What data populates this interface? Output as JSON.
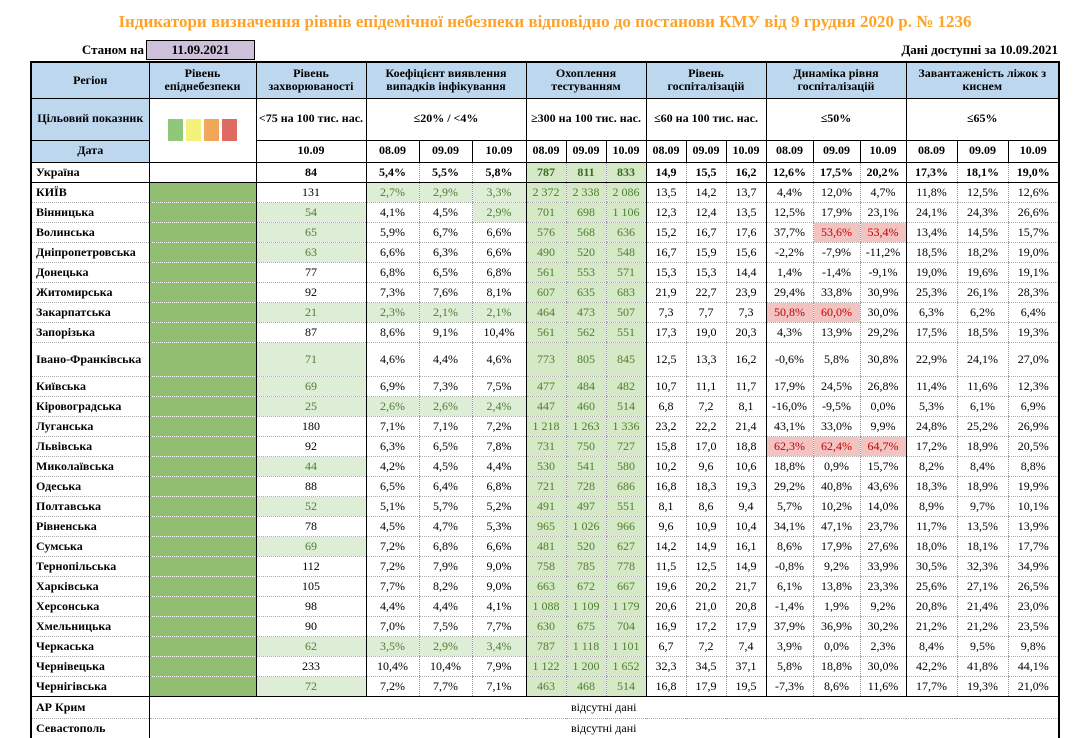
{
  "title": "Індикатори визначення рівнів епідемічної небезпеки відповідно до постанови КМУ від 9 грудня 2020 р. № 1236",
  "as_of": {
    "label": "Станом на",
    "date": "11.09.2021"
  },
  "available": "Дані доступні за  10.09.2021",
  "header": {
    "region": "Регіон",
    "target_row_label": "Цільовий показник",
    "date_row_label": "Дата",
    "groups": [
      {
        "label": "Рівень епіднебезпеки",
        "target": "",
        "dates": []
      },
      {
        "label": "Рівень захворюваності",
        "target": "<75 на 100 тис. нас.",
        "dates": [
          "10.09"
        ]
      },
      {
        "label": "Коефіцієнт виявлення випадків інфікування",
        "target": "≤20% / <4%",
        "dates": [
          "08.09",
          "09.09",
          "10.09"
        ]
      },
      {
        "label": "Охоплення тестуванням",
        "target": "≥300 на 100 тис. нас.",
        "dates": [
          "08.09",
          "09.09",
          "10.09"
        ]
      },
      {
        "label": "Рівень госпіталізацій",
        "target": "≤60 на 100 тис. нас.",
        "dates": [
          "08.09",
          "09.09",
          "10.09"
        ]
      },
      {
        "label": "Динаміка рівня госпіталізацій",
        "target": "≤50%",
        "dates": [
          "08.09",
          "09.09",
          "10.09"
        ]
      },
      {
        "label": "Завантаженість ліжок з киснем",
        "target": "≤65%",
        "dates": [
          "08.09",
          "09.09",
          "10.09"
        ]
      }
    ],
    "legend_colors": [
      "#8FC878",
      "#F5F27B",
      "#F2A65A",
      "#DF6A62"
    ]
  },
  "status_colors": {
    "epi_level_green": "#92BE72",
    "ok_bg": "#DEEDD6",
    "ok_text": "#4E7E32",
    "testing_bg": "#D6E9C6",
    "alert_bg": "#F3C3C2",
    "alert_text": "#C00000",
    "header_bg": "#BDD7EE",
    "date_box_bg": "#CCC0DA",
    "title_text": "#FFA228"
  },
  "rows": [
    {
      "region": "Україна",
      "bold": true,
      "epi": false,
      "inc": "84",
      "inc_g": false,
      "det": [
        "5,4%",
        "5,5%",
        "5,8%"
      ],
      "det_g": [
        false,
        false,
        false
      ],
      "test": [
        "787",
        "811",
        "833"
      ],
      "hosp": [
        "14,9",
        "15,5",
        "16,2"
      ],
      "dyn": [
        "12,6%",
        "17,5%",
        "20,2%"
      ],
      "dyn_r": [
        false,
        false,
        false
      ],
      "beds": [
        "17,3%",
        "18,1%",
        "19,0%"
      ]
    },
    {
      "region": "КИЇВ",
      "epi": true,
      "inc": "131",
      "inc_g": false,
      "det": [
        "2,7%",
        "2,9%",
        "3,3%"
      ],
      "det_g": [
        true,
        true,
        true
      ],
      "test": [
        "2 372",
        "2 338",
        "2 086"
      ],
      "hosp": [
        "13,5",
        "14,2",
        "13,7"
      ],
      "dyn": [
        "4,4%",
        "12,0%",
        "4,7%"
      ],
      "dyn_r": [
        false,
        false,
        false
      ],
      "beds": [
        "11,8%",
        "12,5%",
        "12,6%"
      ]
    },
    {
      "region": "Вінницька",
      "epi": true,
      "inc": "54",
      "inc_g": true,
      "det": [
        "4,1%",
        "4,5%",
        "2,9%"
      ],
      "det_g": [
        false,
        false,
        true
      ],
      "test": [
        "701",
        "698",
        "1 106"
      ],
      "hosp": [
        "12,3",
        "12,4",
        "13,5"
      ],
      "dyn": [
        "12,5%",
        "17,9%",
        "23,1%"
      ],
      "dyn_r": [
        false,
        false,
        false
      ],
      "beds": [
        "24,1%",
        "24,3%",
        "26,6%"
      ]
    },
    {
      "region": "Волинська",
      "epi": true,
      "inc": "65",
      "inc_g": true,
      "det": [
        "5,9%",
        "6,7%",
        "6,6%"
      ],
      "det_g": [
        false,
        false,
        false
      ],
      "test": [
        "576",
        "568",
        "636"
      ],
      "hosp": [
        "15,2",
        "16,7",
        "17,6"
      ],
      "dyn": [
        "37,7%",
        "53,6%",
        "53,4%"
      ],
      "dyn_r": [
        false,
        true,
        true
      ],
      "beds": [
        "13,4%",
        "14,5%",
        "15,7%"
      ]
    },
    {
      "region": "Дніпропетровська",
      "epi": true,
      "inc": "63",
      "inc_g": true,
      "det": [
        "6,6%",
        "6,3%",
        "6,6%"
      ],
      "det_g": [
        false,
        false,
        false
      ],
      "test": [
        "490",
        "520",
        "548"
      ],
      "hosp": [
        "16,7",
        "15,9",
        "15,6"
      ],
      "dyn": [
        "-2,2%",
        "-7,9%",
        "-11,2%"
      ],
      "dyn_r": [
        false,
        false,
        false
      ],
      "beds": [
        "18,5%",
        "18,2%",
        "19,0%"
      ]
    },
    {
      "region": "Донецька",
      "epi": true,
      "inc": "77",
      "inc_g": false,
      "det": [
        "6,8%",
        "6,5%",
        "6,8%"
      ],
      "det_g": [
        false,
        false,
        false
      ],
      "test": [
        "561",
        "553",
        "571"
      ],
      "hosp": [
        "15,3",
        "15,3",
        "14,4"
      ],
      "dyn": [
        "1,4%",
        "-1,4%",
        "-9,1%"
      ],
      "dyn_r": [
        false,
        false,
        false
      ],
      "beds": [
        "19,0%",
        "19,6%",
        "19,1%"
      ]
    },
    {
      "region": "Житомирська",
      "epi": true,
      "inc": "92",
      "inc_g": false,
      "det": [
        "7,3%",
        "7,6%",
        "8,1%"
      ],
      "det_g": [
        false,
        false,
        false
      ],
      "test": [
        "607",
        "635",
        "683"
      ],
      "hosp": [
        "21,9",
        "22,7",
        "23,9"
      ],
      "dyn": [
        "29,4%",
        "33,8%",
        "30,9%"
      ],
      "dyn_r": [
        false,
        false,
        false
      ],
      "beds": [
        "25,3%",
        "26,1%",
        "28,3%"
      ]
    },
    {
      "region": "Закарпатська",
      "epi": true,
      "inc": "21",
      "inc_g": true,
      "det": [
        "2,3%",
        "2,1%",
        "2,1%"
      ],
      "det_g": [
        true,
        true,
        true
      ],
      "test": [
        "464",
        "473",
        "507"
      ],
      "hosp": [
        "7,3",
        "7,7",
        "7,3"
      ],
      "dyn": [
        "50,8%",
        "60,0%",
        "30,0%"
      ],
      "dyn_r": [
        true,
        true,
        false
      ],
      "beds": [
        "6,3%",
        "6,2%",
        "6,4%"
      ]
    },
    {
      "region": "Запорізька",
      "epi": true,
      "inc": "87",
      "inc_g": false,
      "det": [
        "8,6%",
        "9,1%",
        "10,4%"
      ],
      "det_g": [
        false,
        false,
        false
      ],
      "test": [
        "561",
        "562",
        "551"
      ],
      "hosp": [
        "17,3",
        "19,0",
        "20,3"
      ],
      "dyn": [
        "4,3%",
        "13,9%",
        "29,2%"
      ],
      "dyn_r": [
        false,
        false,
        false
      ],
      "beds": [
        "17,5%",
        "18,5%",
        "19,3%"
      ]
    },
    {
      "region": "Івано-Франківська",
      "tall": true,
      "epi": true,
      "inc": "71",
      "inc_g": true,
      "det": [
        "4,6%",
        "4,4%",
        "4,6%"
      ],
      "det_g": [
        false,
        false,
        false
      ],
      "test": [
        "773",
        "805",
        "845"
      ],
      "hosp": [
        "12,5",
        "13,3",
        "16,2"
      ],
      "dyn": [
        "-0,6%",
        "5,8%",
        "30,8%"
      ],
      "dyn_r": [
        false,
        false,
        false
      ],
      "beds": [
        "22,9%",
        "24,1%",
        "27,0%"
      ]
    },
    {
      "region": "Київська",
      "epi": true,
      "inc": "69",
      "inc_g": true,
      "det": [
        "6,9%",
        "7,3%",
        "7,5%"
      ],
      "det_g": [
        false,
        false,
        false
      ],
      "test": [
        "477",
        "484",
        "482"
      ],
      "hosp": [
        "10,7",
        "11,1",
        "11,7"
      ],
      "dyn": [
        "17,9%",
        "24,5%",
        "26,8%"
      ],
      "dyn_r": [
        false,
        false,
        false
      ],
      "beds": [
        "11,4%",
        "11,6%",
        "12,3%"
      ]
    },
    {
      "region": "Кіровоградська",
      "epi": true,
      "inc": "25",
      "inc_g": true,
      "det": [
        "2,6%",
        "2,6%",
        "2,4%"
      ],
      "det_g": [
        true,
        true,
        true
      ],
      "test": [
        "447",
        "460",
        "514"
      ],
      "hosp": [
        "6,8",
        "7,2",
        "8,1"
      ],
      "dyn": [
        "-16,0%",
        "-9,5%",
        "0,0%"
      ],
      "dyn_r": [
        false,
        false,
        false
      ],
      "beds": [
        "5,3%",
        "6,1%",
        "6,9%"
      ]
    },
    {
      "region": "Луганська",
      "epi": true,
      "inc": "180",
      "inc_g": false,
      "det": [
        "7,1%",
        "7,1%",
        "7,2%"
      ],
      "det_g": [
        false,
        false,
        false
      ],
      "test": [
        "1 218",
        "1 263",
        "1 336"
      ],
      "hosp": [
        "23,2",
        "22,2",
        "21,4"
      ],
      "dyn": [
        "43,1%",
        "33,0%",
        "9,9%"
      ],
      "dyn_r": [
        false,
        false,
        false
      ],
      "beds": [
        "24,8%",
        "25,2%",
        "26,9%"
      ]
    },
    {
      "region": "Львівська",
      "epi": true,
      "inc": "92",
      "inc_g": false,
      "det": [
        "6,3%",
        "6,5%",
        "7,8%"
      ],
      "det_g": [
        false,
        false,
        false
      ],
      "test": [
        "731",
        "750",
        "727"
      ],
      "hosp": [
        "15,8",
        "17,0",
        "18,8"
      ],
      "dyn": [
        "62,3%",
        "62,4%",
        "64,7%"
      ],
      "dyn_r": [
        true,
        true,
        true
      ],
      "beds": [
        "17,2%",
        "18,9%",
        "20,5%"
      ]
    },
    {
      "region": "Миколаївська",
      "epi": true,
      "inc": "44",
      "inc_g": true,
      "det": [
        "4,2%",
        "4,5%",
        "4,4%"
      ],
      "det_g": [
        false,
        false,
        false
      ],
      "test": [
        "530",
        "541",
        "580"
      ],
      "hosp": [
        "10,2",
        "9,6",
        "10,6"
      ],
      "dyn": [
        "18,8%",
        "0,9%",
        "15,7%"
      ],
      "dyn_r": [
        false,
        false,
        false
      ],
      "beds": [
        "8,2%",
        "8,4%",
        "8,8%"
      ]
    },
    {
      "region": "Одеська",
      "epi": true,
      "inc": "88",
      "inc_g": false,
      "det": [
        "6,5%",
        "6,4%",
        "6,8%"
      ],
      "det_g": [
        false,
        false,
        false
      ],
      "test": [
        "721",
        "728",
        "686"
      ],
      "hosp": [
        "16,8",
        "18,3",
        "19,3"
      ],
      "dyn": [
        "29,2%",
        "40,8%",
        "43,6%"
      ],
      "dyn_r": [
        false,
        false,
        false
      ],
      "beds": [
        "18,3%",
        "18,9%",
        "19,9%"
      ]
    },
    {
      "region": "Полтавська",
      "epi": true,
      "inc": "52",
      "inc_g": true,
      "det": [
        "5,1%",
        "5,7%",
        "5,2%"
      ],
      "det_g": [
        false,
        false,
        false
      ],
      "test": [
        "491",
        "497",
        "551"
      ],
      "hosp": [
        "8,1",
        "8,6",
        "9,4"
      ],
      "dyn": [
        "5,7%",
        "10,2%",
        "14,0%"
      ],
      "dyn_r": [
        false,
        false,
        false
      ],
      "beds": [
        "8,9%",
        "9,7%",
        "10,1%"
      ]
    },
    {
      "region": "Рівненська",
      "epi": true,
      "inc": "78",
      "inc_g": false,
      "det": [
        "4,5%",
        "4,7%",
        "5,3%"
      ],
      "det_g": [
        false,
        false,
        false
      ],
      "test": [
        "965",
        "1 026",
        "966"
      ],
      "hosp": [
        "9,6",
        "10,9",
        "10,4"
      ],
      "dyn": [
        "34,1%",
        "47,1%",
        "23,7%"
      ],
      "dyn_r": [
        false,
        false,
        false
      ],
      "beds": [
        "11,7%",
        "13,5%",
        "13,9%"
      ]
    },
    {
      "region": "Сумська",
      "epi": true,
      "inc": "69",
      "inc_g": true,
      "det": [
        "7,2%",
        "6,8%",
        "6,6%"
      ],
      "det_g": [
        false,
        false,
        false
      ],
      "test": [
        "481",
        "520",
        "627"
      ],
      "hosp": [
        "14,2",
        "14,9",
        "16,1"
      ],
      "dyn": [
        "8,6%",
        "17,9%",
        "27,6%"
      ],
      "dyn_r": [
        false,
        false,
        false
      ],
      "beds": [
        "18,0%",
        "18,1%",
        "17,7%"
      ]
    },
    {
      "region": "Тернопільська",
      "epi": true,
      "inc": "112",
      "inc_g": false,
      "det": [
        "7,2%",
        "7,9%",
        "9,0%"
      ],
      "det_g": [
        false,
        false,
        false
      ],
      "test": [
        "758",
        "785",
        "778"
      ],
      "hosp": [
        "11,5",
        "12,5",
        "14,9"
      ],
      "dyn": [
        "-0,8%",
        "9,2%",
        "33,9%"
      ],
      "dyn_r": [
        false,
        false,
        false
      ],
      "beds": [
        "30,5%",
        "32,3%",
        "34,9%"
      ]
    },
    {
      "region": "Харківська",
      "epi": true,
      "inc": "105",
      "inc_g": false,
      "det": [
        "7,7%",
        "8,2%",
        "9,0%"
      ],
      "det_g": [
        false,
        false,
        false
      ],
      "test": [
        "663",
        "672",
        "667"
      ],
      "hosp": [
        "19,6",
        "20,2",
        "21,7"
      ],
      "dyn": [
        "6,1%",
        "13,8%",
        "23,3%"
      ],
      "dyn_r": [
        false,
        false,
        false
      ],
      "beds": [
        "25,6%",
        "27,1%",
        "26,5%"
      ]
    },
    {
      "region": "Херсонська",
      "epi": true,
      "inc": "98",
      "inc_g": false,
      "det": [
        "4,4%",
        "4,4%",
        "4,1%"
      ],
      "det_g": [
        false,
        false,
        false
      ],
      "test": [
        "1 088",
        "1 109",
        "1 179"
      ],
      "hosp": [
        "20,6",
        "21,0",
        "20,8"
      ],
      "dyn": [
        "-1,4%",
        "1,9%",
        "9,2%"
      ],
      "dyn_r": [
        false,
        false,
        false
      ],
      "beds": [
        "20,8%",
        "21,4%",
        "23,0%"
      ]
    },
    {
      "region": "Хмельницька",
      "epi": true,
      "inc": "90",
      "inc_g": false,
      "det": [
        "7,0%",
        "7,5%",
        "7,7%"
      ],
      "det_g": [
        false,
        false,
        false
      ],
      "test": [
        "630",
        "675",
        "704"
      ],
      "hosp": [
        "16,9",
        "17,2",
        "17,9"
      ],
      "dyn": [
        "37,9%",
        "36,9%",
        "30,2%"
      ],
      "dyn_r": [
        false,
        false,
        false
      ],
      "beds": [
        "21,2%",
        "21,2%",
        "23,5%"
      ]
    },
    {
      "region": "Черкаська",
      "epi": true,
      "inc": "62",
      "inc_g": true,
      "det": [
        "3,5%",
        "2,9%",
        "3,4%"
      ],
      "det_g": [
        true,
        true,
        true
      ],
      "test": [
        "787",
        "1 118",
        "1 101"
      ],
      "hosp": [
        "6,7",
        "7,2",
        "7,4"
      ],
      "dyn": [
        "3,9%",
        "0,0%",
        "2,3%"
      ],
      "dyn_r": [
        false,
        false,
        false
      ],
      "beds": [
        "8,4%",
        "9,5%",
        "9,8%"
      ]
    },
    {
      "region": "Чернівецька",
      "epi": true,
      "inc": "233",
      "inc_g": false,
      "det": [
        "10,4%",
        "10,4%",
        "7,9%"
      ],
      "det_g": [
        false,
        false,
        false
      ],
      "test": [
        "1 122",
        "1 200",
        "1 652"
      ],
      "hosp": [
        "32,3",
        "34,5",
        "37,1"
      ],
      "dyn": [
        "5,8%",
        "18,8%",
        "30,0%"
      ],
      "dyn_r": [
        false,
        false,
        false
      ],
      "beds": [
        "42,2%",
        "41,8%",
        "44,1%"
      ]
    },
    {
      "region": "Чернігівська",
      "solid": true,
      "epi": true,
      "inc": "72",
      "inc_g": true,
      "det": [
        "7,2%",
        "7,7%",
        "7,1%"
      ],
      "det_g": [
        false,
        false,
        false
      ],
      "test": [
        "463",
        "468",
        "514"
      ],
      "hosp": [
        "16,8",
        "17,9",
        "19,5"
      ],
      "dyn": [
        "-7,3%",
        "8,6%",
        "11,6%"
      ],
      "dyn_r": [
        false,
        false,
        false
      ],
      "beds": [
        "17,7%",
        "19,3%",
        "21,0%"
      ]
    },
    {
      "region": "АР Крим",
      "nodata": "відсутні дані"
    },
    {
      "region": "Севастополь",
      "nodata": "відсутні дані"
    }
  ]
}
